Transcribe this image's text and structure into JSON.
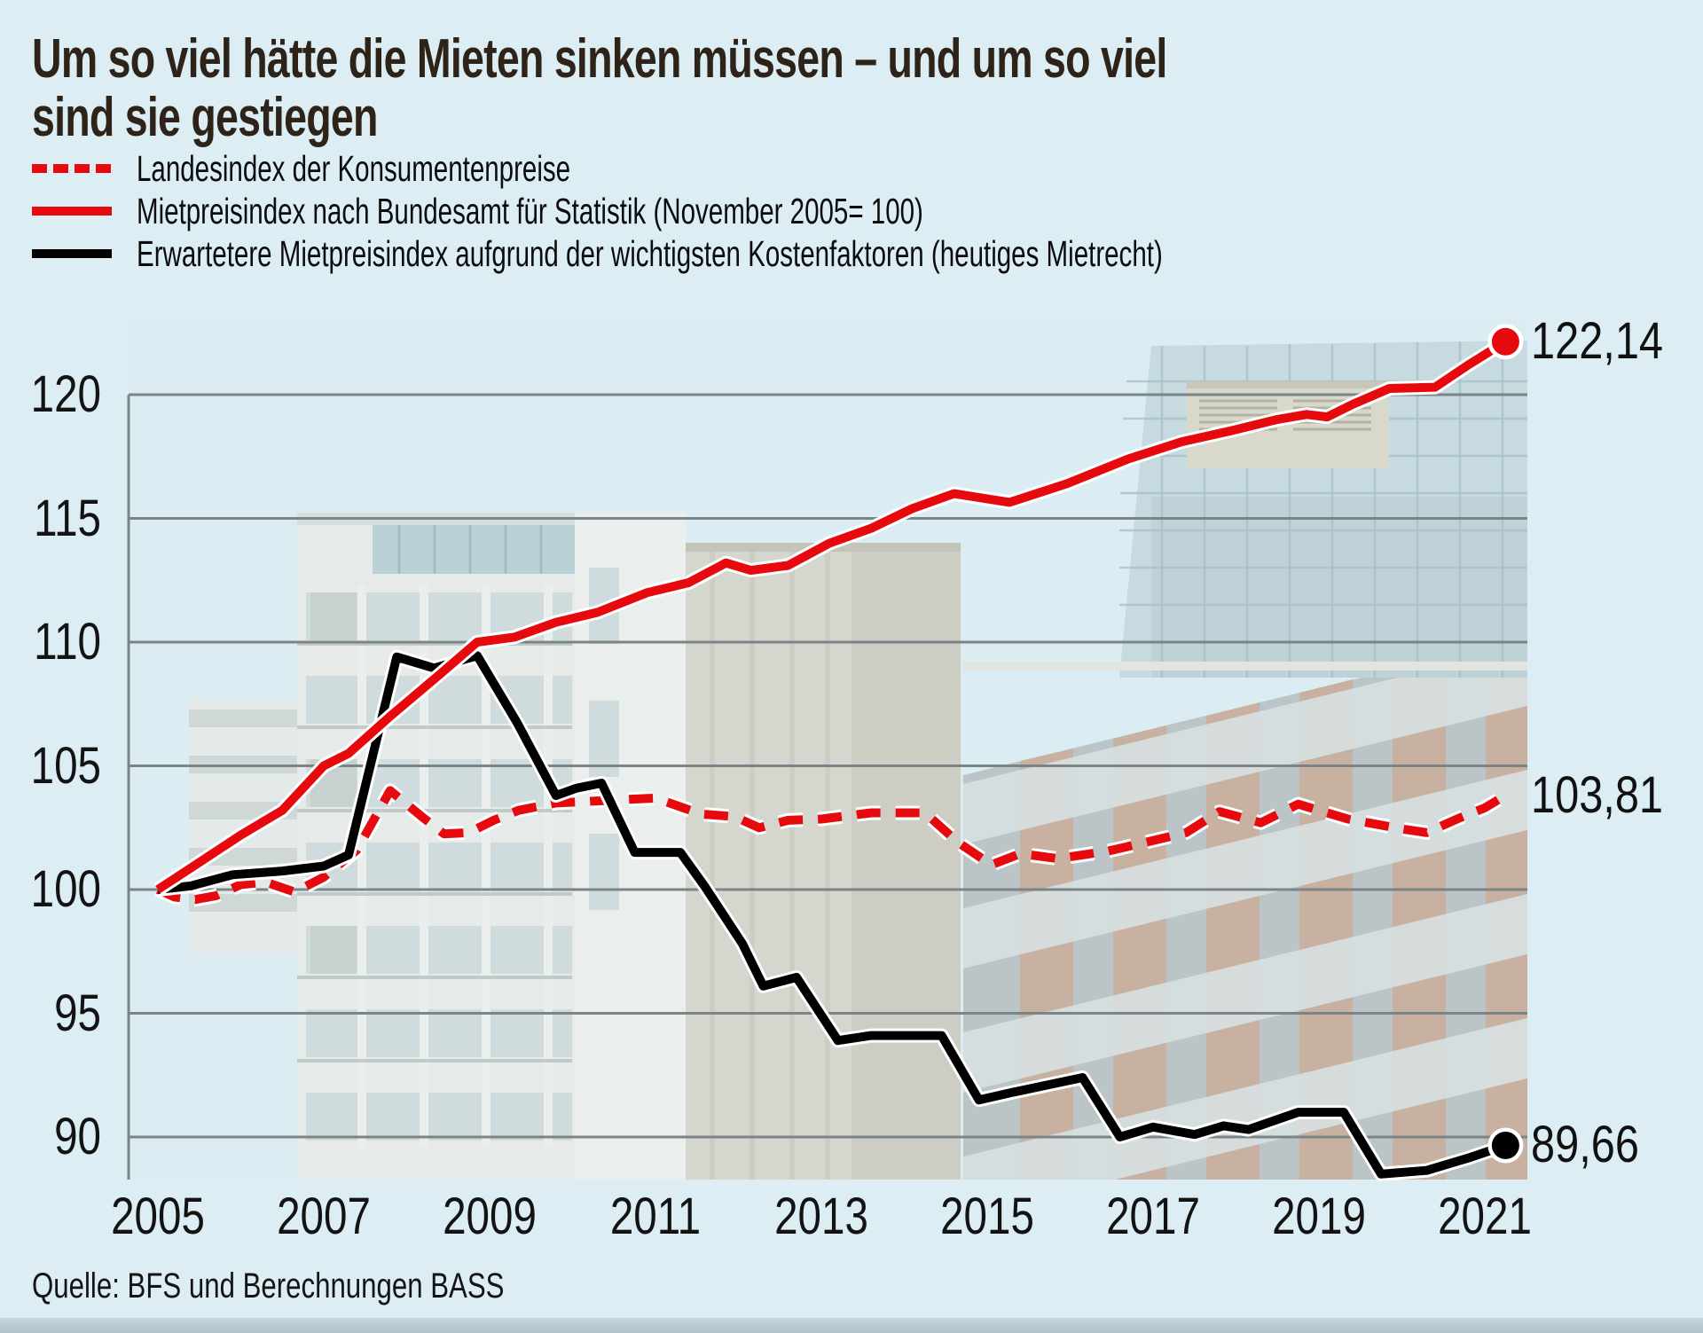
{
  "header": {
    "title_line1": "Um so viel hätte die Mieten sinken müssen – und um so viel",
    "title_line2": "sind sie gestiegen"
  },
  "chart_data": {
    "type": "line",
    "title": "Um so viel hätte die Mieten sinken müssen – und um so viel sind sie gestiegen",
    "index_note": "November 2005 = 100",
    "x_ticks": [
      "2005",
      "2007",
      "2009",
      "2011",
      "2013",
      "2015",
      "2017",
      "2019",
      "2021"
    ],
    "y_ticks": [
      90,
      95,
      100,
      105,
      110,
      115,
      120
    ],
    "x_range": [
      2005,
      2021.55
    ],
    "y_range": [
      88.3,
      120.7
    ],
    "grid": "horizontal-only",
    "legend_position": "top-left",
    "source": "Quelle: BFS und Berechnungen BASS",
    "colors": {
      "red": "#e60a0f",
      "black": "#000000",
      "gridline": "#7b8486",
      "background": "#dceef3"
    },
    "series": [
      {
        "id": "landesindex-konsumentenpreise",
        "name": "Landesindex der Konsumentenpreise",
        "color": "#e60a0f",
        "style": "dashed",
        "z": 1,
        "end_dot": false,
        "end_value": 103.81,
        "end_label": "103,81",
        "points": [
          [
            2005,
            100
          ],
          [
            2005.2,
            99.7
          ],
          [
            2005.45,
            99.6
          ],
          [
            2005.7,
            99.75
          ],
          [
            2006,
            100.2
          ],
          [
            2006.3,
            100.3
          ],
          [
            2006.65,
            99.9
          ],
          [
            2007,
            100.5
          ],
          [
            2007.4,
            101.6
          ],
          [
            2007.8,
            104.0
          ],
          [
            2008.2,
            102.9
          ],
          [
            2008.45,
            102.25
          ],
          [
            2008.75,
            102.3
          ],
          [
            2009.05,
            102.8
          ],
          [
            2009.35,
            103.2
          ],
          [
            2009.8,
            103.5
          ],
          [
            2010.4,
            103.6
          ],
          [
            2011,
            103.7
          ],
          [
            2011.55,
            103.05
          ],
          [
            2011.95,
            102.95
          ],
          [
            2012.25,
            102.5
          ],
          [
            2012.6,
            102.8
          ],
          [
            2013,
            102.85
          ],
          [
            2013.6,
            103.1
          ],
          [
            2014.25,
            103.1
          ],
          [
            2014.65,
            101.9
          ],
          [
            2015.05,
            101.0
          ],
          [
            2015.4,
            101.45
          ],
          [
            2015.85,
            101.25
          ],
          [
            2016.45,
            101.55
          ],
          [
            2016.9,
            101.9
          ],
          [
            2017.4,
            102.3
          ],
          [
            2017.8,
            103.15
          ],
          [
            2018.3,
            102.7
          ],
          [
            2018.75,
            103.45
          ],
          [
            2019.35,
            102.85
          ],
          [
            2020,
            102.45
          ],
          [
            2020.3,
            102.3
          ],
          [
            2020.7,
            102.9
          ],
          [
            2021,
            103.3
          ],
          [
            2021.25,
            103.81
          ]
        ]
      },
      {
        "id": "mietpreisindex-bfs",
        "name": "Mietpreisindex nach Bundesamt für Statistik (November 2005= 100)",
        "color": "#e60a0f",
        "style": "solid",
        "z": 3,
        "end_dot": true,
        "end_value": 122.14,
        "end_label": "122,14",
        "points": [
          [
            2005,
            100
          ],
          [
            2005.5,
            101.1
          ],
          [
            2006,
            102.2
          ],
          [
            2006.5,
            103.2
          ],
          [
            2007,
            105.0
          ],
          [
            2007.3,
            105.5
          ],
          [
            2007.8,
            107.0
          ],
          [
            2008.4,
            108.7
          ],
          [
            2008.85,
            110.0
          ],
          [
            2009.3,
            110.2
          ],
          [
            2009.8,
            110.8
          ],
          [
            2010.3,
            111.2
          ],
          [
            2010.9,
            112.0
          ],
          [
            2011.4,
            112.4
          ],
          [
            2011.85,
            113.2
          ],
          [
            2012.15,
            112.9
          ],
          [
            2012.6,
            113.1
          ],
          [
            2013.1,
            114.0
          ],
          [
            2013.6,
            114.6
          ],
          [
            2014.1,
            115.4
          ],
          [
            2014.6,
            116.0
          ],
          [
            2015.27,
            115.65
          ],
          [
            2015.96,
            116.4
          ],
          [
            2016.7,
            117.4
          ],
          [
            2017.35,
            118.1
          ],
          [
            2017.95,
            118.55
          ],
          [
            2018.5,
            119.0
          ],
          [
            2018.85,
            119.2
          ],
          [
            2019.1,
            119.1
          ],
          [
            2019.4,
            119.6
          ],
          [
            2019.85,
            120.25
          ],
          [
            2020.4,
            120.3
          ],
          [
            2020.8,
            121.2
          ],
          [
            2021.25,
            122.14
          ]
        ]
      },
      {
        "id": "erwarteter-mietpreisindex",
        "name": "Erwartetere Mietpreisindex aufgrund der wichtigsten Kostenfaktoren (heutiges Mietrecht)",
        "color": "#000000",
        "style": "solid",
        "z": 2,
        "end_dot": true,
        "end_value": 89.66,
        "end_label": "89,66",
        "points": [
          [
            2005,
            100
          ],
          [
            2005.4,
            100.15
          ],
          [
            2005.9,
            100.6
          ],
          [
            2006.5,
            100.75
          ],
          [
            2007,
            100.95
          ],
          [
            2007.3,
            101.4
          ],
          [
            2007.88,
            109.4
          ],
          [
            2008.33,
            108.95
          ],
          [
            2008.85,
            109.45
          ],
          [
            2009.33,
            106.75
          ],
          [
            2009.8,
            103.8
          ],
          [
            2010.05,
            104.1
          ],
          [
            2010.35,
            104.3
          ],
          [
            2010.75,
            101.5
          ],
          [
            2011.3,
            101.5
          ],
          [
            2011.6,
            100.1
          ],
          [
            2012.05,
            97.8
          ],
          [
            2012.3,
            96.1
          ],
          [
            2012.7,
            96.45
          ],
          [
            2013.2,
            93.9
          ],
          [
            2013.6,
            94.1
          ],
          [
            2014.45,
            94.1
          ],
          [
            2014.9,
            91.5
          ],
          [
            2015.3,
            91.8
          ],
          [
            2016.15,
            92.4
          ],
          [
            2016.6,
            90.0
          ],
          [
            2017,
            90.4
          ],
          [
            2017.5,
            90.1
          ],
          [
            2017.85,
            90.45
          ],
          [
            2018.15,
            90.3
          ],
          [
            2018.75,
            91.0
          ],
          [
            2019.3,
            91.0
          ],
          [
            2019.75,
            88.5
          ],
          [
            2020.3,
            88.65
          ],
          [
            2020.8,
            89.15
          ],
          [
            2021.25,
            89.66
          ]
        ]
      }
    ]
  }
}
